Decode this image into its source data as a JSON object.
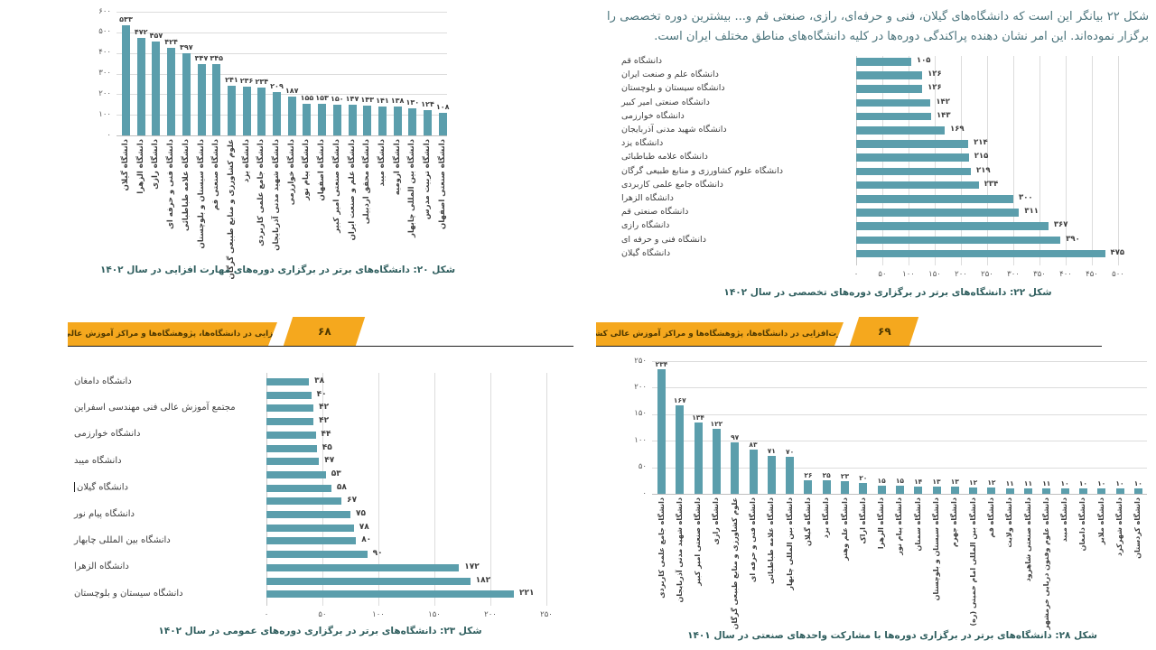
{
  "texts": {
    "paragraph": "شکل ۲۲ بیانگر این است که دانشگاه‌های گیلان، فنی و حرفه‌ای، رازی، صنعتی قم و... بیشترین دوره تخصصی را برگزار نموده‌اند. این امر نشان دهنده پراکندگی دوره‌ها در کلیه دانشگاه‌های مناطق مختلف ایران است."
  },
  "footer_left": {
    "title": "مهارت‌افزایی در دانشگاه‌ها، پژوهشگاه‌ها و مراکز آموزش عالی کشور",
    "page_number": "۶۸"
  },
  "footer_right": {
    "title": "مهارت‌افزایی در دانشگاه‌ها، پژوهشگاه‌ها و مراکز آموزش عالی کشور",
    "page_number": "۶۹"
  },
  "colors": {
    "bar": "#5B9EAC",
    "band_yellow": "#F5A81E",
    "caption_text": "#2F5E5E",
    "body_text": "#4A737B",
    "value_label": "#3D3D3D",
    "axis_tick": "#595959",
    "gridline": "#DCDCDC",
    "footer_line": "#1F1F1F",
    "footer_text": "#4D3800"
  },
  "chart_data": [
    {
      "id": "fig20",
      "type": "bar",
      "orientation": "vertical",
      "title": "شکل ۲۰: دانشگاه‌های برتر در برگزاری دوره‌های مهارت افزایی در سال ۱۴۰۲",
      "categories": [
        "دانشگاه گیلان",
        "دانشگاه الزهرا",
        "دانشگاه رازی",
        "دانشگاه فنی و حرفه ای",
        "دانشگاه علامه طباطبائی",
        "دانشگاه سیستان و بلوچستان",
        "دانشگاه صنعتی قم",
        "علوم کشاورزی و منابع طبیعی گرگان",
        "دانشگاه یزد",
        "دانشگاه جامع علمی کاربردی",
        "دانشگاه شهید مدنی آذربایجان",
        "دانشگاه خوارزمی",
        "دانشگاه پیام نور",
        "دانشگاه اصفهان",
        "دانشگاه صنعتی امیر کبیر",
        "دانشگاه علم و صنعت ایران",
        "دانشگاه محقق اردبیلی",
        "دانشگاه میبد",
        "دانشگاه ارومیه",
        "دانشگاه بین المللی چابهار",
        "دانشگاه تربیت مدرس",
        "دانشگاه صنعتی اصفهان"
      ],
      "values": [
        533,
        472,
        457,
        424,
        397,
        347,
        345,
        241,
        236,
        234,
        209,
        187,
        155,
        153,
        150,
        147,
        143,
        141,
        138,
        130,
        124,
        108
      ],
      "ylim": [
        0,
        600
      ],
      "yticks": [
        0,
        100,
        200,
        300,
        400,
        500,
        600
      ],
      "xlabel": "",
      "ylabel": "",
      "grid": true,
      "data_labels": true,
      "digit_style": "persian"
    },
    {
      "id": "fig22",
      "type": "bar",
      "orientation": "horizontal",
      "title": "شکل ۲۲: دانشگاه‌های برتر در برگزاری دوره‌های  تخصصی در سال ۱۴۰۲",
      "categories": [
        "دانشگاه قم",
        "دانشگاه علم و صنعت ایران",
        "دانشگاه سیستان و بلوچستان",
        "دانشگاه صنعتی امیر کبیر",
        "دانشگاه خوارزمی",
        "دانشگاه شهید مدنی آذربایجان",
        "دانشگاه یزد",
        "دانشگاه علامه طباطبائی",
        "دانشگاه علوم کشاورزی و منابع طبیعی گرگان",
        "دانشگاه جامع علمی کاربردی",
        "دانشگاه الزهرا",
        "دانشگاه صنعتی قم",
        "دانشگاه رازی",
        "دانشگاه فنی و حرفه ای",
        "دانشگاه گیلان"
      ],
      "values": [
        105,
        126,
        126,
        142,
        143,
        169,
        214,
        215,
        219,
        234,
        300,
        311,
        367,
        390,
        475
      ],
      "xlim": [
        0,
        500
      ],
      "xticks": [
        0,
        50,
        100,
        150,
        200,
        250,
        300,
        350,
        400,
        450,
        500
      ],
      "xlabel": "",
      "ylabel": "",
      "grid": true,
      "data_labels": true,
      "digit_style": "persian"
    },
    {
      "id": "fig23",
      "type": "bar",
      "orientation": "horizontal",
      "title": "شکل ۲۳: دانشگاه‌های برتر در برگزاری دوره‌های عمومی در سال ۱۴۰۲",
      "categories": [
        "دانشگاه دامغان",
        "",
        "مجتمع آموزش عالی فنی مهندسی اسفراین",
        "",
        "دانشگاه خوارزمی",
        "",
        "دانشگاه میبد",
        "",
        "دانشگاه گیلان",
        "",
        "دانشگاه پیام نور",
        "",
        "دانشگاه بین المللی چابهار",
        "",
        "دانشگاه الزهرا",
        "",
        "دانشگاه سیستان و بلوچستان"
      ],
      "values": [
        38,
        40,
        42,
        42,
        44,
        45,
        47,
        53,
        58,
        67,
        75,
        78,
        80,
        90,
        172,
        182,
        221
      ],
      "xlim": [
        0,
        250
      ],
      "xticks": [
        0,
        50,
        100,
        150,
        200,
        250
      ],
      "xlabel": "",
      "ylabel": "",
      "grid": true,
      "data_labels": true,
      "digit_style": "persian",
      "text_cursor_at_row": 8
    },
    {
      "id": "fig28",
      "type": "bar",
      "orientation": "vertical",
      "title": "شکل ۲۸: دانشگاه‌های برتر در برگزاری دوره‌ها با مشارکت واحدهای صنعتی در سال ۱۴۰۱",
      "categories": [
        "دانشگاه جامع علمی کاربردی",
        "دانشگاه شهید مدنی آذربایجان",
        "دانشگاه صنعتی امیر کبیر",
        "دانشگاه رازی",
        "علوم کشاورزی و منابع طبیعی گرگان",
        "دانشگاه فنی و حرفه ای",
        "دانشگاه علامه طباطبائی",
        "دانشگاه بین المللی چابهار",
        "دانشگاه گیلان",
        "دانشگاه یزد",
        "دانشگاه علم وهنر",
        "دانشگاه اراک",
        "دانشگاه الزهرا",
        "دانشگاه پیام نور",
        "دانشگاه سمنان",
        "دانشگاه سیستان و بلوچستان",
        "دانشگاه جهرم",
        "دانشگاه بین المللی امام خمینی (ره)",
        "دانشگاه قم",
        "دانشگاه ولایت",
        "دانشگاه صنعتی شاهرود",
        "دانشگاه علوم وفنون دریایی خرمشهر",
        "دانشگاه میبد",
        "دانشگاه دامغان",
        "دانشگاه ملایر",
        "دانشگاه شهرکرد",
        "دانشگاه کردستان"
      ],
      "values": [
        234,
        167,
        134,
        122,
        97,
        83,
        71,
        70,
        26,
        25,
        23,
        20,
        15,
        15,
        14,
        13,
        13,
        12,
        12,
        11,
        11,
        11,
        10,
        10,
        10,
        10,
        10
      ],
      "ylim": [
        0,
        250
      ],
      "yticks": [
        0,
        50,
        100,
        150,
        200,
        250
      ],
      "xlabel": "",
      "ylabel": "",
      "grid": true,
      "data_labels": true,
      "digit_style": "persian"
    }
  ]
}
